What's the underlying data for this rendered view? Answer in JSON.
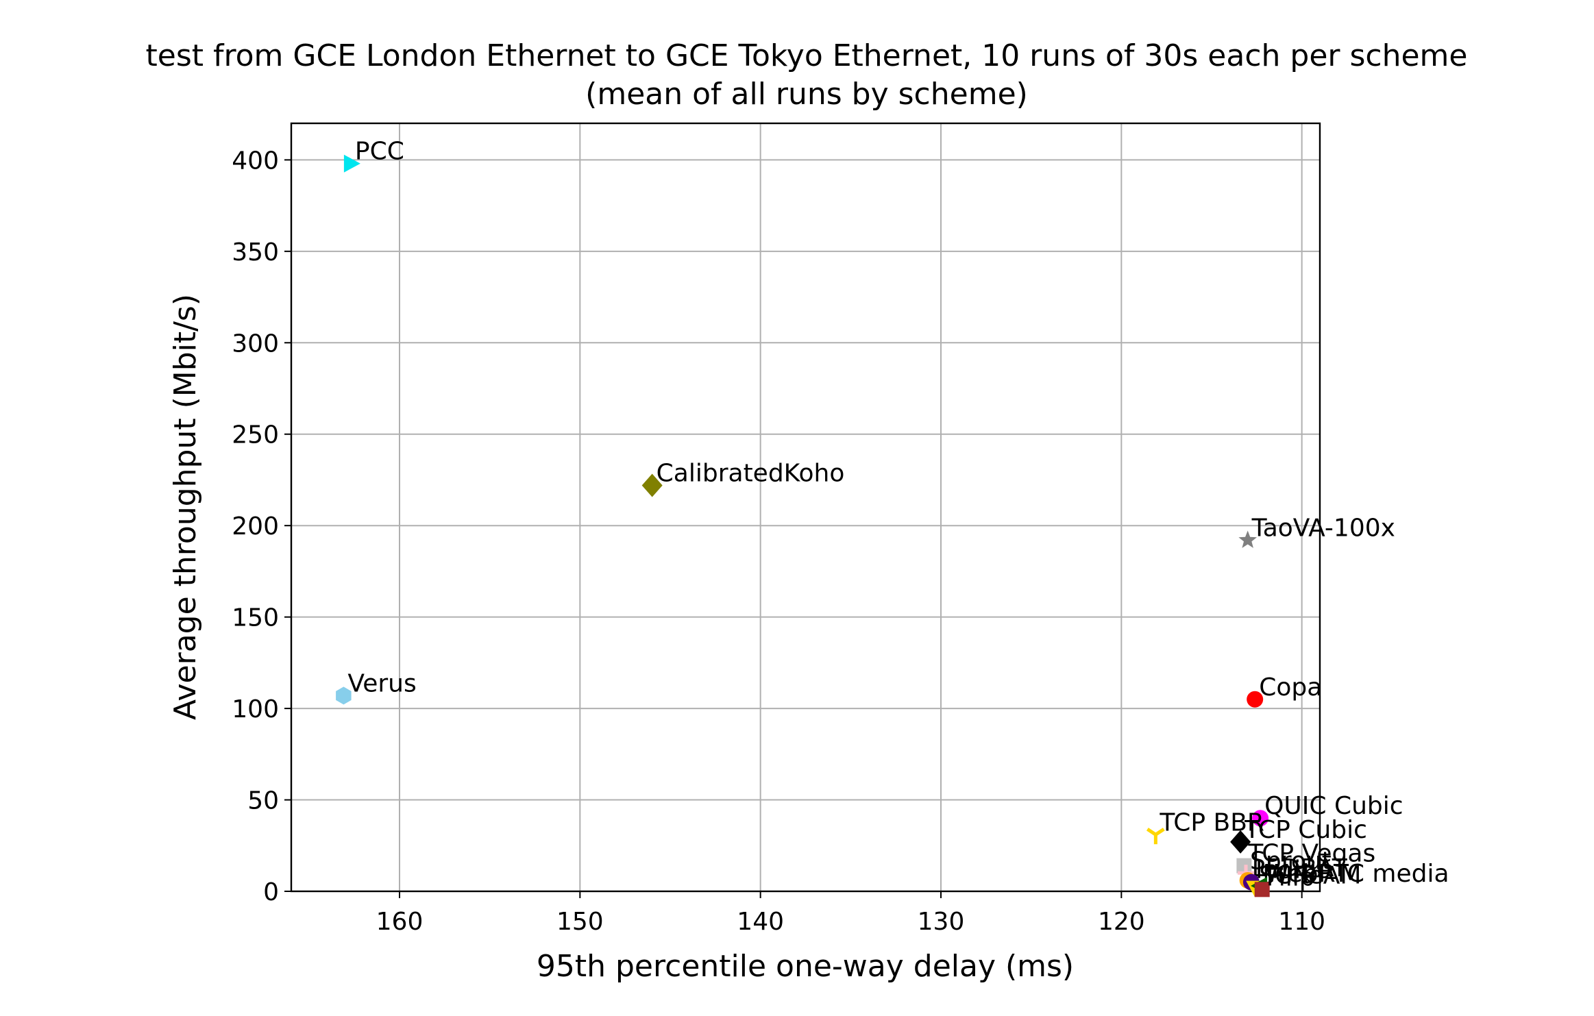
{
  "chart_data": {
    "type": "scatter",
    "title": "test from GCE London Ethernet to GCE Tokyo Ethernet, 10 runs of 30s each per scheme",
    "subtitle": "(mean of all runs by scheme)",
    "xlabel": "95th percentile one-way delay (ms)",
    "ylabel": "Average throughput (Mbit/s)",
    "xlim": [
      166,
      109
    ],
    "ylim": [
      0,
      420
    ],
    "x_inverted": true,
    "grid": true,
    "x_ticks": [
      160,
      150,
      140,
      130,
      120,
      110
    ],
    "y_ticks": [
      0,
      50,
      100,
      150,
      200,
      250,
      300,
      350,
      400
    ],
    "points": [
      {
        "label": "PCC",
        "x": 162.7,
        "y": 398,
        "color": "#00e5ee",
        "marker": "triangle-right"
      },
      {
        "label": "CalibratedKoho",
        "x": 146.0,
        "y": 222,
        "color": "#808000",
        "marker": "diamond"
      },
      {
        "label": "TaoVA-100x",
        "x": 113.0,
        "y": 192,
        "color": "#808080",
        "marker": "star"
      },
      {
        "label": "Verus",
        "x": 163.1,
        "y": 107,
        "color": "#87ceeb",
        "marker": "hexagon"
      },
      {
        "label": "Copa",
        "x": 112.6,
        "y": 105,
        "color": "#ff0000",
        "marker": "circle"
      },
      {
        "label": "QUIC Cubic",
        "x": 112.3,
        "y": 40,
        "color": "#ff00ff",
        "marker": "circle"
      },
      {
        "label": "TCP BBR",
        "x": 118.1,
        "y": 31,
        "color": "#ffd700",
        "marker": "tri-down"
      },
      {
        "label": "TCP Cubic",
        "x": 113.4,
        "y": 27,
        "color": "#000000",
        "marker": "diamond"
      },
      {
        "label": "TCP Vegas",
        "x": 113.2,
        "y": 14,
        "color": "#c0c0c0",
        "marker": "square"
      },
      {
        "label": "Sprout",
        "x": 113.1,
        "y": 10,
        "color": "#ffc0cb",
        "marker": "plus"
      },
      {
        "label": "LEDBAT",
        "x": 113.0,
        "y": 6,
        "color": "#ffa500",
        "marker": "circle"
      },
      {
        "label": "Indigo",
        "x": 112.8,
        "y": 5,
        "color": "#4b0082",
        "marker": "circle"
      },
      {
        "label": "SCReAM",
        "x": 112.6,
        "y": 2,
        "color": "#ffd700",
        "marker": "triangle-down"
      },
      {
        "label": "WebRTC media",
        "x": 112.3,
        "y": 3,
        "color": "#006400",
        "marker": "triangle-left"
      },
      {
        "label": "Fillp",
        "x": 112.2,
        "y": 1,
        "color": "#a52a2a",
        "marker": "square"
      }
    ]
  }
}
